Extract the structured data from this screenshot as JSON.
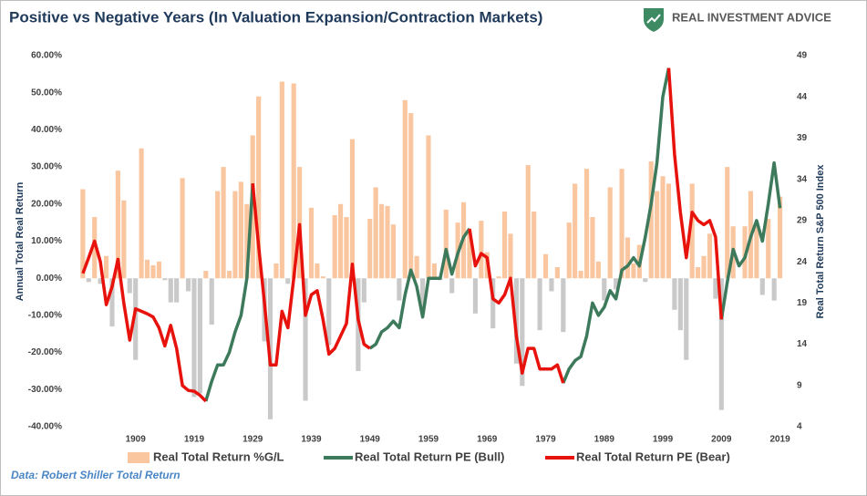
{
  "chart_data": {
    "type": "bar",
    "title": "Positive vs Negative Years (In Valuation Expansion/Contraction Markets)",
    "logo_text": "REAL INVESTMENT ADVICE",
    "source": "Data: Robert Shiller Total Return",
    "ylabel": "Annual Total Real Return",
    "y2label": "Real Total Return S&P 500 Index",
    "x": [
      1900,
      1901,
      1902,
      1903,
      1904,
      1905,
      1906,
      1907,
      1908,
      1909,
      1910,
      1911,
      1912,
      1913,
      1914,
      1915,
      1916,
      1917,
      1918,
      1919,
      1920,
      1921,
      1922,
      1923,
      1924,
      1925,
      1926,
      1927,
      1928,
      1929,
      1930,
      1931,
      1932,
      1933,
      1934,
      1935,
      1936,
      1937,
      1938,
      1939,
      1940,
      1941,
      1942,
      1943,
      1944,
      1945,
      1946,
      1947,
      1948,
      1949,
      1950,
      1951,
      1952,
      1953,
      1954,
      1955,
      1956,
      1957,
      1958,
      1959,
      1960,
      1961,
      1962,
      1963,
      1964,
      1965,
      1966,
      1967,
      1968,
      1969,
      1970,
      1971,
      1972,
      1973,
      1974,
      1975,
      1976,
      1977,
      1978,
      1979,
      1980,
      1981,
      1982,
      1983,
      1984,
      1985,
      1986,
      1987,
      1988,
      1989,
      1990,
      1991,
      1992,
      1993,
      1994,
      1995,
      1996,
      1997,
      1998,
      1999,
      2000,
      2001,
      2002,
      2003,
      2004,
      2005,
      2006,
      2007,
      2008,
      2009,
      2010,
      2011,
      2012,
      2013,
      2014,
      2015,
      2016,
      2017,
      2018,
      2019
    ],
    "xlim": [
      1898,
      2020
    ],
    "xticks": [
      1909,
      1919,
      1929,
      1939,
      1949,
      1959,
      1969,
      1979,
      1989,
      1999,
      2009,
      2019
    ],
    "ylim": [
      -40,
      60
    ],
    "yticks": [
      {
        "value": -40,
        "label": "-40.00%"
      },
      {
        "value": -30,
        "label": "-30.00%"
      },
      {
        "value": -20,
        "label": "-20.00%"
      },
      {
        "value": -10,
        "label": "-10.00%"
      },
      {
        "value": 0,
        "label": "0.00%"
      },
      {
        "value": 10,
        "label": "10.00%"
      },
      {
        "value": 20,
        "label": "20.00%"
      },
      {
        "value": 30,
        "label": "30.00%"
      },
      {
        "value": 40,
        "label": "40.00%"
      },
      {
        "value": 50,
        "label": "50.00%"
      },
      {
        "value": 60,
        "label": "60.00%"
      }
    ],
    "y2lim": [
      4,
      49
    ],
    "y2ticks": [
      4,
      9,
      14,
      19,
      24,
      29,
      34,
      39,
      44,
      49
    ],
    "series": [
      {
        "name": "Real Total Return %G/L",
        "type": "bar",
        "color": "#f9c6a0",
        "negative_color": "#c9c9c9",
        "values": [
          24,
          -1,
          16.5,
          -1.5,
          6,
          -13,
          29,
          21,
          -4,
          -22,
          35,
          5,
          3.5,
          4.5,
          -0.5,
          -6.5,
          -6.5,
          27,
          -3.5,
          -32,
          -31,
          2,
          -12.5,
          23.5,
          30,
          2,
          23.5,
          26,
          20,
          38.5,
          49,
          -17,
          -38,
          4,
          53,
          -1.5,
          52.5,
          30,
          -33,
          19,
          4,
          0.5,
          -18,
          17,
          20,
          16.5,
          37.5,
          -25,
          -6.5,
          16,
          24.5,
          20,
          19.5,
          14.5,
          -6,
          48,
          44.5,
          6,
          -9.5,
          38.5,
          4,
          -0.5,
          18.5,
          -4,
          15,
          20.5,
          13,
          -9.5,
          15.5,
          7,
          -13.5,
          0.5,
          18,
          12,
          -23,
          -29,
          30.5,
          18,
          -14,
          6.5,
          -3.5,
          3,
          -14.5,
          15,
          25.5,
          2,
          29.5,
          16.5,
          4.5,
          -6,
          24.5,
          -3,
          29.5,
          11,
          4,
          9,
          -1,
          31.5,
          23.5,
          27.5,
          25.5,
          -8.5,
          -14,
          -22,
          25.5,
          3,
          6,
          12,
          -5.5,
          -35.5,
          30,
          14,
          0,
          14,
          23.5,
          14,
          -4.5,
          16,
          -6,
          22
        ]
      },
      {
        "name": "Real Total Return PE (Bull)",
        "type": "line",
        "axis": "y2",
        "color": "#3d7a5c",
        "values": [
          null,
          null,
          null,
          null,
          null,
          null,
          null,
          null,
          null,
          null,
          null,
          null,
          null,
          null,
          null,
          null,
          null,
          null,
          null,
          null,
          null,
          7.1,
          9.5,
          11.5,
          11.5,
          13,
          15.5,
          17.5,
          22,
          33.5,
          null,
          null,
          null,
          null,
          null,
          null,
          null,
          null,
          null,
          null,
          null,
          null,
          null,
          null,
          null,
          null,
          null,
          null,
          null,
          13.5,
          14,
          15.5,
          16,
          16.8,
          16,
          20,
          23,
          21,
          17.3,
          22,
          22,
          22,
          25.5,
          22.5,
          25,
          27,
          28,
          null,
          null,
          null,
          null,
          null,
          null,
          null,
          null,
          null,
          null,
          null,
          null,
          null,
          null,
          null,
          9.3,
          11,
          12,
          12.5,
          15,
          19,
          17.5,
          18.5,
          20.5,
          19.5,
          23,
          23.5,
          24.5,
          23.5,
          27,
          31,
          36,
          44,
          47.5,
          null,
          null,
          null,
          null,
          null,
          null,
          null,
          null,
          17,
          21.5,
          25.5,
          23.5,
          24.5,
          27,
          29,
          26.5,
          31,
          36,
          30.5
        ]
      },
      {
        "name": "Real Total Return PE (Bear)",
        "type": "line",
        "axis": "y2",
        "color": "#e8120c",
        "values": [
          22.6,
          24.5,
          26.5,
          24,
          18.8,
          21,
          24.3,
          19,
          14.5,
          18.3,
          18,
          17.7,
          17.3,
          16,
          13.8,
          16.3,
          13.5,
          9,
          8.4,
          8.3,
          7.8,
          7.1,
          null,
          null,
          null,
          null,
          null,
          null,
          null,
          33.5,
          26,
          19,
          11.5,
          11.5,
          18,
          16,
          22,
          28.5,
          17.5,
          20,
          20.5,
          17,
          12.8,
          13.5,
          15,
          16.5,
          23.7,
          17,
          14,
          13.5,
          null,
          null,
          null,
          null,
          null,
          null,
          null,
          null,
          null,
          null,
          null,
          null,
          null,
          null,
          null,
          null,
          28,
          23.5,
          25,
          24.5,
          19.5,
          19,
          20,
          22,
          15,
          10.5,
          13.5,
          13.5,
          11,
          11,
          11,
          11.5,
          9.3,
          null,
          null,
          null,
          null,
          null,
          null,
          null,
          null,
          null,
          null,
          null,
          null,
          null,
          null,
          null,
          null,
          null,
          47.5,
          37,
          30,
          24.5,
          30,
          29,
          28.5,
          29,
          27,
          17,
          null,
          null,
          null,
          null,
          null,
          null,
          null,
          null,
          null,
          null
        ]
      }
    ]
  }
}
